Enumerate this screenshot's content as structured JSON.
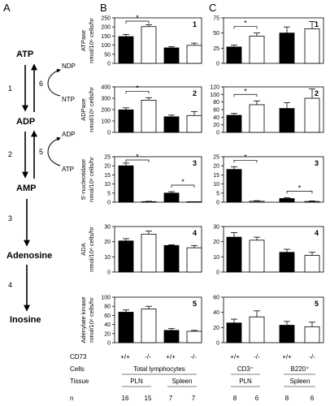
{
  "panel_letters": [
    "A",
    "B",
    "C"
  ],
  "pathway": {
    "nodes": [
      "ATP",
      "ADP",
      "AMP",
      "Adenosine",
      "Inosine"
    ],
    "step_labels": [
      "1",
      "6",
      "2",
      "5",
      "3",
      "4"
    ],
    "side_labels": [
      "NDP",
      "NTP",
      "ADP",
      "ATP"
    ]
  },
  "chart_data": [
    {
      "type": "bar",
      "panel": "B",
      "row": 1,
      "number": "1",
      "ylabel": "ATPase\nnmol/10⁶ cells/hr",
      "categories": [
        "PLN +/+",
        "PLN -/-",
        "Spleen +/+",
        "Spleen -/-"
      ],
      "values": [
        147,
        202,
        85,
        99
      ],
      "errors": [
        12,
        10,
        7,
        12
      ],
      "fill": [
        "black",
        "white",
        "black",
        "white"
      ],
      "ylim": [
        0,
        250
      ],
      "yticks": [
        "0",
        "50",
        "100",
        "150",
        "200",
        "250"
      ],
      "significance": [
        {
          "between": [
            0,
            1
          ],
          "label": "*"
        }
      ]
    },
    {
      "type": "bar",
      "panel": "B",
      "row": 2,
      "number": "2",
      "ylabel": "ADPase\nnmol/10⁶ cells/hr",
      "categories": [
        "PLN +/+",
        "PLN -/-",
        "Spleen +/+",
        "Spleen -/-"
      ],
      "values": [
        198,
        283,
        137,
        148
      ],
      "errors": [
        18,
        22,
        15,
        35
      ],
      "fill": [
        "black",
        "white",
        "black",
        "white"
      ],
      "ylim": [
        0,
        400
      ],
      "yticks": [
        "0",
        "100",
        "200",
        "300",
        "400"
      ],
      "significance": [
        {
          "between": [
            0,
            1
          ],
          "label": "*"
        }
      ]
    },
    {
      "type": "bar",
      "panel": "B",
      "row": 3,
      "number": "3",
      "ylabel": "5'-nucleotidase\nnmol/10⁶ cells/hr",
      "categories": [
        "PLN +/+",
        "PLN -/-",
        "Spleen +/+",
        "Spleen -/-"
      ],
      "values": [
        20,
        0.3,
        5,
        0.1
      ],
      "errors": [
        1.5,
        0.2,
        0.8,
        0.1
      ],
      "fill": [
        "black",
        "white",
        "black",
        "white"
      ],
      "ylim": [
        0,
        25
      ],
      "yticks": [
        "0",
        "5",
        "10",
        "15",
        "20",
        "25"
      ],
      "significance": [
        {
          "between": [
            0,
            1
          ],
          "label": "*"
        },
        {
          "between": [
            2,
            3
          ],
          "label": "*"
        }
      ]
    },
    {
      "type": "bar",
      "panel": "B",
      "row": 4,
      "number": "4",
      "ylabel": "ADA\nnmol/10⁶ cells/hr",
      "categories": [
        "PLN +/+",
        "PLN -/-",
        "Spleen +/+",
        "Spleen -/-"
      ],
      "values": [
        20.5,
        25,
        17.5,
        16
      ],
      "errors": [
        1.5,
        2,
        0.5,
        1.5
      ],
      "fill": [
        "black",
        "white",
        "black",
        "white"
      ],
      "ylim": [
        0,
        30
      ],
      "yticks": [
        "0",
        "10",
        "20",
        "30"
      ],
      "significance": []
    },
    {
      "type": "bar",
      "panel": "B",
      "row": 5,
      "number": "5",
      "ylabel": "Adenylate kinase\nnmol/10⁶ cells/hr",
      "categories": [
        "PLN +/+",
        "PLN -/-",
        "Spleen +/+",
        "Spleen -/-"
      ],
      "values": [
        67,
        74,
        27,
        25
      ],
      "errors": [
        5,
        6,
        4,
        2
      ],
      "fill": [
        "black",
        "white",
        "black",
        "white"
      ],
      "ylim": [
        0,
        100
      ],
      "yticks": [
        "0",
        "20",
        "40",
        "60",
        "80",
        "100"
      ],
      "significance": []
    },
    {
      "type": "bar",
      "panel": "C",
      "row": 1,
      "number": "1",
      "categories": [
        "CD3⁺ +/+",
        "CD3⁺ -/-",
        "B220⁺ +/+",
        "B220⁺ -/-"
      ],
      "values": [
        27,
        45,
        50,
        57
      ],
      "errors": [
        3,
        5,
        10,
        12
      ],
      "fill": [
        "black",
        "white",
        "black",
        "white"
      ],
      "ylim": [
        0,
        75
      ],
      "yticks": [
        "0",
        "25",
        "50",
        "75"
      ],
      "significance": [
        {
          "between": [
            0,
            1
          ],
          "label": "*"
        }
      ]
    },
    {
      "type": "bar",
      "panel": "C",
      "row": 2,
      "number": "2",
      "categories": [
        "CD3⁺ +/+",
        "CD3⁺ -/-",
        "B220⁺ +/+",
        "B220⁺ -/-"
      ],
      "values": [
        45,
        73,
        63,
        90
      ],
      "errors": [
        5,
        10,
        15,
        25
      ],
      "fill": [
        "black",
        "white",
        "black",
        "white"
      ],
      "ylim": [
        0,
        120
      ],
      "yticks": [
        "0",
        "20",
        "40",
        "60",
        "80",
        "100",
        "120"
      ],
      "significance": [
        {
          "between": [
            0,
            1
          ],
          "label": "*"
        }
      ]
    },
    {
      "type": "bar",
      "panel": "C",
      "row": 3,
      "number": "3",
      "categories": [
        "CD3⁺ +/+",
        "CD3⁺ -/-",
        "B220⁺ +/+",
        "B220⁺ -/-"
      ],
      "values": [
        18,
        0.5,
        2,
        0.4
      ],
      "errors": [
        1.5,
        0.3,
        0.5,
        0.3
      ],
      "fill": [
        "black",
        "white",
        "black",
        "white"
      ],
      "ylim": [
        0,
        25
      ],
      "yticks": [
        "0",
        "5",
        "10",
        "15",
        "20",
        "25"
      ],
      "significance": [
        {
          "between": [
            0,
            1
          ],
          "label": "*"
        },
        {
          "between": [
            2,
            3
          ],
          "label": "*"
        }
      ]
    },
    {
      "type": "bar",
      "panel": "C",
      "row": 4,
      "number": "4",
      "categories": [
        "CD3⁺ +/+",
        "CD3⁺ -/-",
        "B220⁺ +/+",
        "B220⁺ -/-"
      ],
      "values": [
        23,
        21,
        13,
        11
      ],
      "errors": [
        3,
        2,
        2,
        2
      ],
      "fill": [
        "black",
        "white",
        "black",
        "white"
      ],
      "ylim": [
        0,
        30
      ],
      "yticks": [
        "0",
        "10",
        "20",
        "30"
      ],
      "significance": []
    },
    {
      "type": "bar",
      "panel": "C",
      "row": 5,
      "number": "5",
      "categories": [
        "CD3⁺ +/+",
        "CD3⁺ -/-",
        "B220⁺ +/+",
        "B220⁺ -/-"
      ],
      "values": [
        26,
        34,
        23,
        21
      ],
      "errors": [
        5,
        8,
        5,
        6
      ],
      "fill": [
        "black",
        "white",
        "black",
        "white"
      ],
      "ylim": [
        0,
        60
      ],
      "yticks": [
        "0",
        "20",
        "40",
        "60"
      ],
      "significance": []
    }
  ],
  "table_b": {
    "cd73_label": "CD73",
    "cells_label": "Cells",
    "tissue_label": "Tissue",
    "n_label": "n",
    "genotypes": [
      "+/+",
      "-/-",
      "+/+",
      "-/-"
    ],
    "cells": "Total lymphocytes",
    "tissues": [
      "PLN",
      "Spleen"
    ],
    "n": [
      "16",
      "15",
      "7",
      "7"
    ]
  },
  "table_c": {
    "genotypes": [
      "+/+",
      "-/-",
      "+/+",
      "-/-"
    ],
    "cells": [
      "CD3⁺",
      "B220⁺"
    ],
    "tissues": [
      "PLN",
      "Spleen"
    ],
    "n": [
      "8",
      "6",
      "8",
      "6"
    ]
  }
}
